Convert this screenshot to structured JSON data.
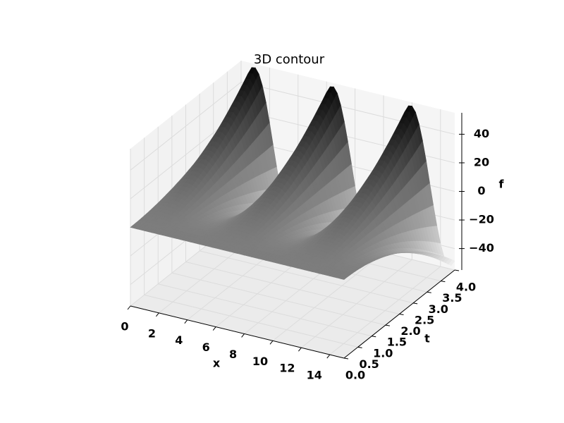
{
  "chart_data": {
    "type": "contour3d",
    "title": "3D contour",
    "xlabel": "x",
    "ylabel": "t",
    "zlabel": "f",
    "xlim": [
      0,
      15
    ],
    "ylim": [
      0,
      4
    ],
    "zlim": [
      -55,
      55
    ],
    "xticks": [
      0,
      2,
      4,
      6,
      8,
      10,
      12,
      14
    ],
    "yticks": [
      {
        "value": 0,
        "label": "0.0"
      },
      {
        "value": 0.5,
        "label": "0.5"
      },
      {
        "value": 1,
        "label": "1.0"
      },
      {
        "value": 1.5,
        "label": "1.5"
      },
      {
        "value": 2,
        "label": "2.0"
      },
      {
        "value": 2.5,
        "label": "2.5"
      },
      {
        "value": 3,
        "label": "3.0"
      },
      {
        "value": 3.5,
        "label": "3.5"
      },
      {
        "value": 4,
        "label": "4.0"
      }
    ],
    "zticks": [
      {
        "value": -40,
        "label": "−40"
      },
      {
        "value": -20,
        "label": "−20"
      },
      0,
      20,
      40
    ],
    "grid": true
  }
}
